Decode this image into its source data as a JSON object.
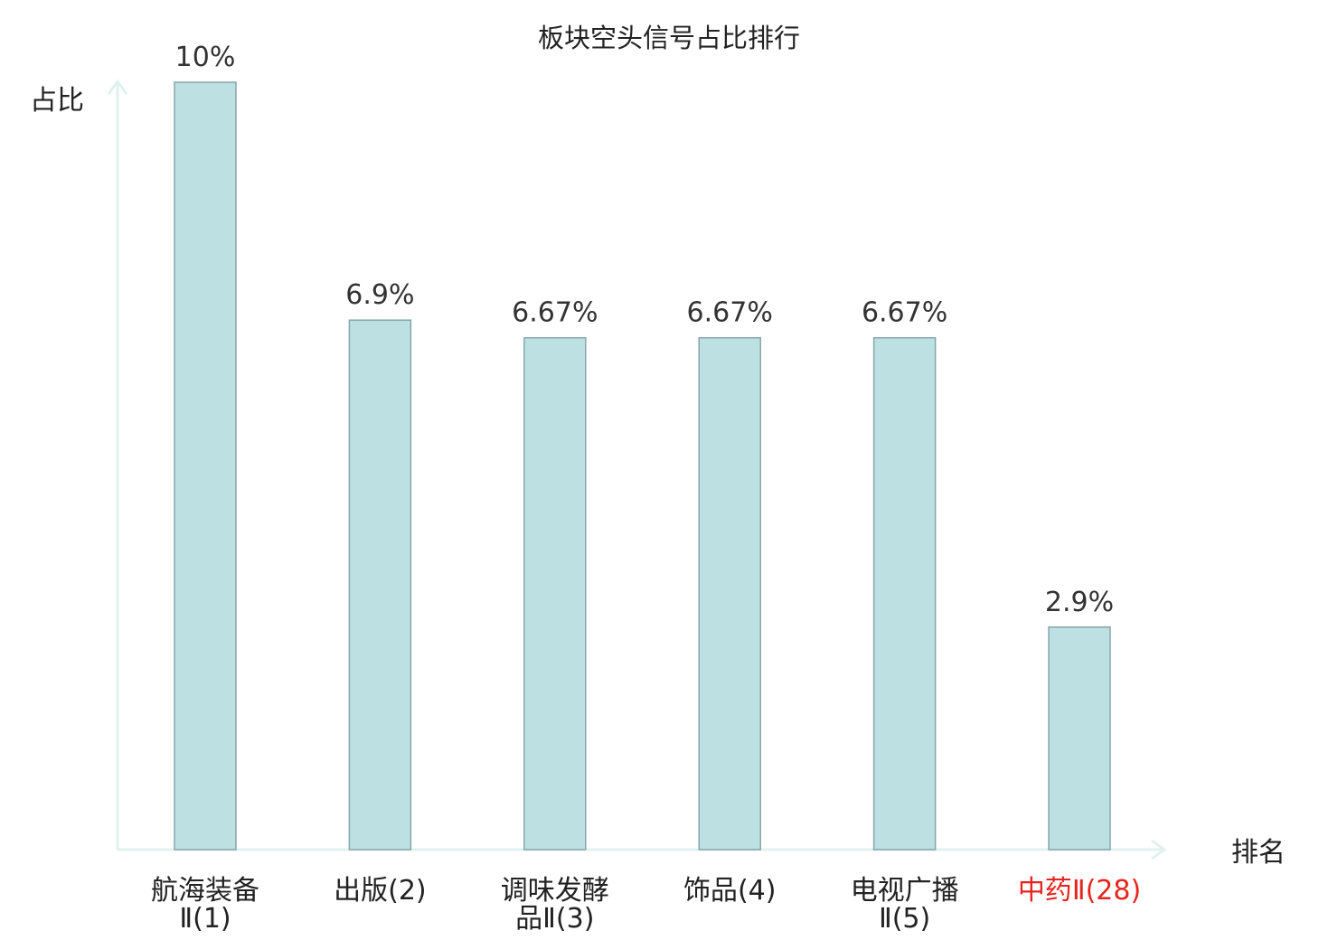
{
  "chart_data": {
    "type": "bar",
    "title": "板块空头信号占比排行",
    "xlabel": "排名",
    "ylabel": "占比",
    "ylim": [
      0,
      10
    ],
    "grid": false,
    "legend": "none",
    "categories": [
      {
        "name": "航海装备",
        "suffix": "Ⅱ",
        "rank": "(1)",
        "highlight": false
      },
      {
        "name": "出版",
        "suffix": "",
        "rank": "(2)",
        "highlight": false
      },
      {
        "name": "调味发酵品",
        "suffix": "Ⅱ",
        "rank": "(3)",
        "highlight": false
      },
      {
        "name": "饰品",
        "suffix": "",
        "rank": "(4)",
        "highlight": false
      },
      {
        "name": "电视广播",
        "suffix": "Ⅱ",
        "rank": "(5)",
        "highlight": false
      },
      {
        "name": "中药",
        "suffix": "Ⅱ",
        "rank": "(28)",
        "highlight": true
      }
    ],
    "values": [
      10,
      6.9,
      6.67,
      6.67,
      6.67,
      2.9
    ],
    "value_labels": [
      "10%",
      "6.9%",
      "6.67%",
      "6.67%",
      "6.67%",
      "2.9%"
    ]
  },
  "colors": {
    "bar_fill": "#bde0e3",
    "bar_stroke": "#86a6aa",
    "axis": "#e0f2ef",
    "text": "#222222",
    "highlight": "#e8231d"
  }
}
